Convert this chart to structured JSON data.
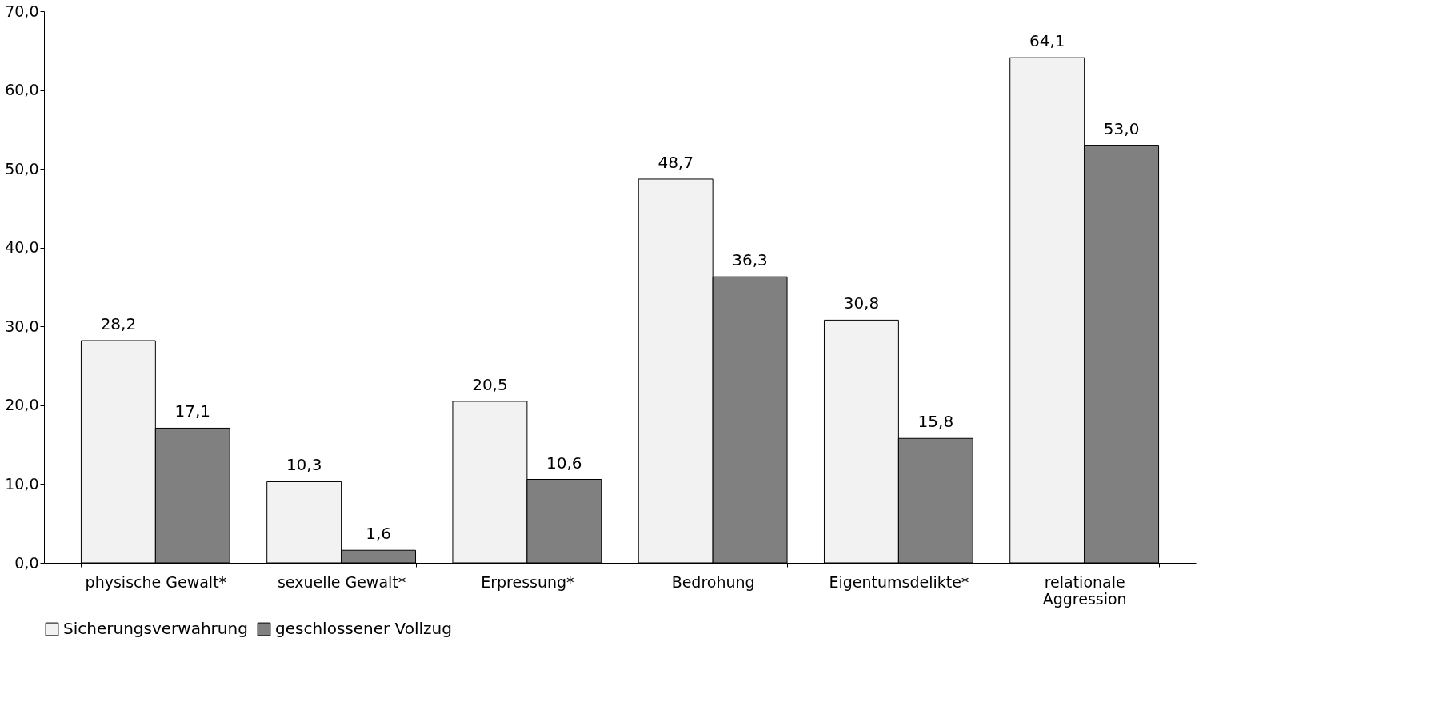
{
  "chart_data": {
    "type": "bar",
    "categories": [
      "physische Gewalt*",
      "sexuelle Gewalt*",
      "Erpressung*",
      "Bedrohung",
      "Eigentumsdelikte*",
      "relationale Aggression"
    ],
    "series": [
      {
        "name": "Sicherungsverwahrung",
        "color": "#f2f2f2",
        "values": [
          28.2,
          10.3,
          20.5,
          48.7,
          30.8,
          64.1
        ],
        "value_labels": [
          "28,2",
          "10,3",
          "20,5",
          "48,7",
          "30,8",
          "64,1"
        ]
      },
      {
        "name": "geschlossener Vollzug",
        "color": "#808080",
        "values": [
          17.1,
          1.6,
          10.6,
          36.3,
          15.8,
          53.0
        ],
        "value_labels": [
          "17,1",
          "1,6",
          "10,6",
          "36,3",
          "15,8",
          "53,0"
        ]
      }
    ],
    "ylim": [
      0,
      70
    ],
    "yticks": [
      {
        "value": 0,
        "label": "0,0"
      },
      {
        "value": 10,
        "label": "10,0"
      },
      {
        "value": 20,
        "label": "20,0"
      },
      {
        "value": 30,
        "label": "30,0"
      },
      {
        "value": 40,
        "label": "40,0"
      },
      {
        "value": 50,
        "label": "50,0"
      },
      {
        "value": 60,
        "label": "60,0"
      },
      {
        "value": 70,
        "label": "70,0"
      }
    ],
    "grid": false,
    "legend": "bottom"
  }
}
